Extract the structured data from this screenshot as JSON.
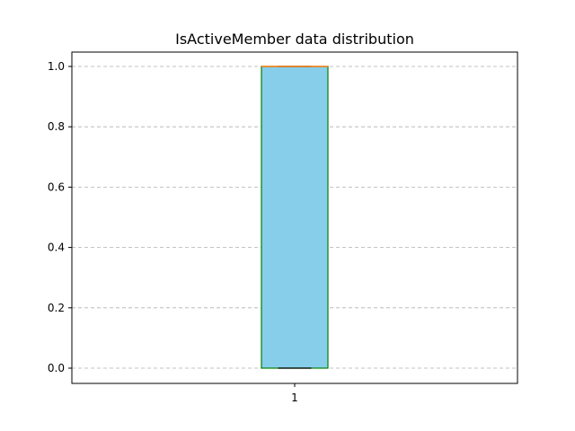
{
  "chart_data": {
    "type": "box",
    "title": "IsActiveMember data distribution",
    "xlabel": "",
    "ylabel": "",
    "categories": [
      "1"
    ],
    "ylim": [
      -0.05,
      1.0
    ],
    "yticks": [
      0.0,
      0.2,
      0.4,
      0.6,
      0.8,
      1.0
    ],
    "ytick_labels": [
      "0.0",
      "0.2",
      "0.4",
      "0.6",
      "0.8",
      "1.0"
    ],
    "grid": "y-dashed",
    "boxes": [
      {
        "label": "1",
        "whisker_low": 0.0,
        "q1": 0.0,
        "median": 1.0,
        "q3": 1.0,
        "whisker_high": 1.0
      }
    ],
    "colors": {
      "box_fill": "#87ceeb",
      "box_edge": "#008000",
      "median": "#ff7f0e",
      "whisker": "#000000",
      "grid": "#b0b0b0",
      "axes": "#000000"
    }
  }
}
